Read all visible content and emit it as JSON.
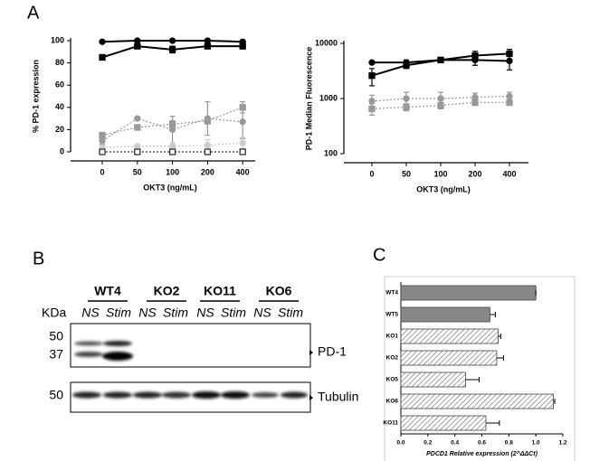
{
  "chart_data": [
    {
      "type": "line",
      "label": "A",
      "y_title": "% PD-1 expression",
      "x_title": "OKT3 (ng/mL)",
      "categories": [
        "0",
        "50",
        "100",
        "200",
        "400"
      ],
      "yscale": "linear",
      "ylim": [
        0,
        100
      ],
      "yticks": [
        0,
        20,
        40,
        60,
        80,
        100
      ],
      "series": [
        {
          "color": "#000000",
          "marker": "circle",
          "dashed": false,
          "open": false,
          "values": [
            99,
            100,
            100,
            100,
            99
          ]
        },
        {
          "color": "#000000",
          "marker": "square",
          "dashed": false,
          "open": false,
          "values": [
            85,
            95,
            92,
            95,
            95
          ],
          "errors": [
            0,
            2,
            3,
            1,
            2
          ]
        },
        {
          "color": "#999999",
          "marker": "circle",
          "dashed": true,
          "open": false,
          "values": [
            10,
            30,
            20,
            30,
            27
          ],
          "errors": [
            3,
            0,
            12,
            15,
            15
          ]
        },
        {
          "color": "#999999",
          "marker": "square",
          "dashed": true,
          "open": false,
          "values": [
            15,
            22,
            25,
            28,
            40
          ],
          "errors": [
            2,
            0,
            3,
            3,
            5
          ]
        },
        {
          "color": "#cccccc",
          "marker": "circle",
          "dashed": true,
          "open": false,
          "values": [
            4,
            5,
            5,
            6,
            8
          ],
          "errors": [
            2,
            0,
            3,
            5,
            5
          ]
        },
        {
          "color": "#333333",
          "marker": "square",
          "dashed": true,
          "open": true,
          "values": [
            0,
            0,
            0,
            0,
            0
          ]
        }
      ]
    },
    {
      "type": "line",
      "label": "",
      "y_title": "PD-1 Median Fluorescence",
      "x_title": "OKT3 (ng/mL)",
      "categories": [
        "0",
        "50",
        "100",
        "200",
        "400"
      ],
      "yscale": "log",
      "ylim": [
        100,
        10000
      ],
      "yticks": [
        100,
        1000,
        10000
      ],
      "series": [
        {
          "color": "#000000",
          "marker": "circle",
          "dashed": false,
          "open": false,
          "values": [
            4500,
            4500,
            5000,
            5000,
            4800
          ],
          "errors": [
            0,
            500,
            500,
            1000,
            1500
          ]
        },
        {
          "color": "#000000",
          "marker": "square",
          "dashed": false,
          "open": false,
          "values": [
            2600,
            4000,
            5000,
            6000,
            6500
          ],
          "errors": [
            900,
            500,
            500,
            1200,
            1300
          ]
        },
        {
          "color": "#999999",
          "marker": "circle",
          "dashed": true,
          "open": false,
          "values": [
            900,
            1000,
            1000,
            1050,
            1100
          ],
          "errors": [
            250,
            300,
            300,
            200,
            200
          ]
        },
        {
          "color": "#999999",
          "marker": "square",
          "dashed": true,
          "open": false,
          "values": [
            650,
            700,
            750,
            850,
            850
          ],
          "errors": [
            150,
            100,
            100,
            100,
            100
          ]
        }
      ]
    },
    {
      "type": "hbar",
      "label": "C",
      "x_title": "PDCD1 Relative expression (2^ΔΔCt)",
      "categories": [
        "WT4",
        "WT5",
        "KO1",
        "KO2",
        "KO5",
        "KO6",
        "KO11"
      ],
      "values": [
        1.0,
        0.66,
        0.72,
        0.71,
        0.48,
        1.13,
        0.63
      ],
      "errors": [
        0,
        0.04,
        0.02,
        0.05,
        0.1,
        0.01,
        0.1
      ],
      "hatched": [
        false,
        false,
        true,
        true,
        true,
        true,
        true
      ],
      "color": "#888888",
      "xlim": [
        0,
        1.2
      ],
      "xticks": [
        {
          "value": 0,
          "label": "0.0"
        },
        0.2,
        0.4,
        0.6,
        0.8,
        {
          "value": 1,
          "label": "1.0"
        },
        1.2
      ]
    }
  ],
  "blot": {
    "label": "B",
    "groups": [
      "WT4",
      "KO2",
      "KO11",
      "KO6"
    ],
    "lanes": [
      "NS",
      "Stim",
      "NS",
      "Stim",
      "NS",
      "Stim",
      "NS",
      "Stim"
    ],
    "unit": "KDa",
    "markers": [
      "50",
      "37",
      "50"
    ],
    "targets": [
      "PD-1",
      "Tubulin"
    ]
  }
}
